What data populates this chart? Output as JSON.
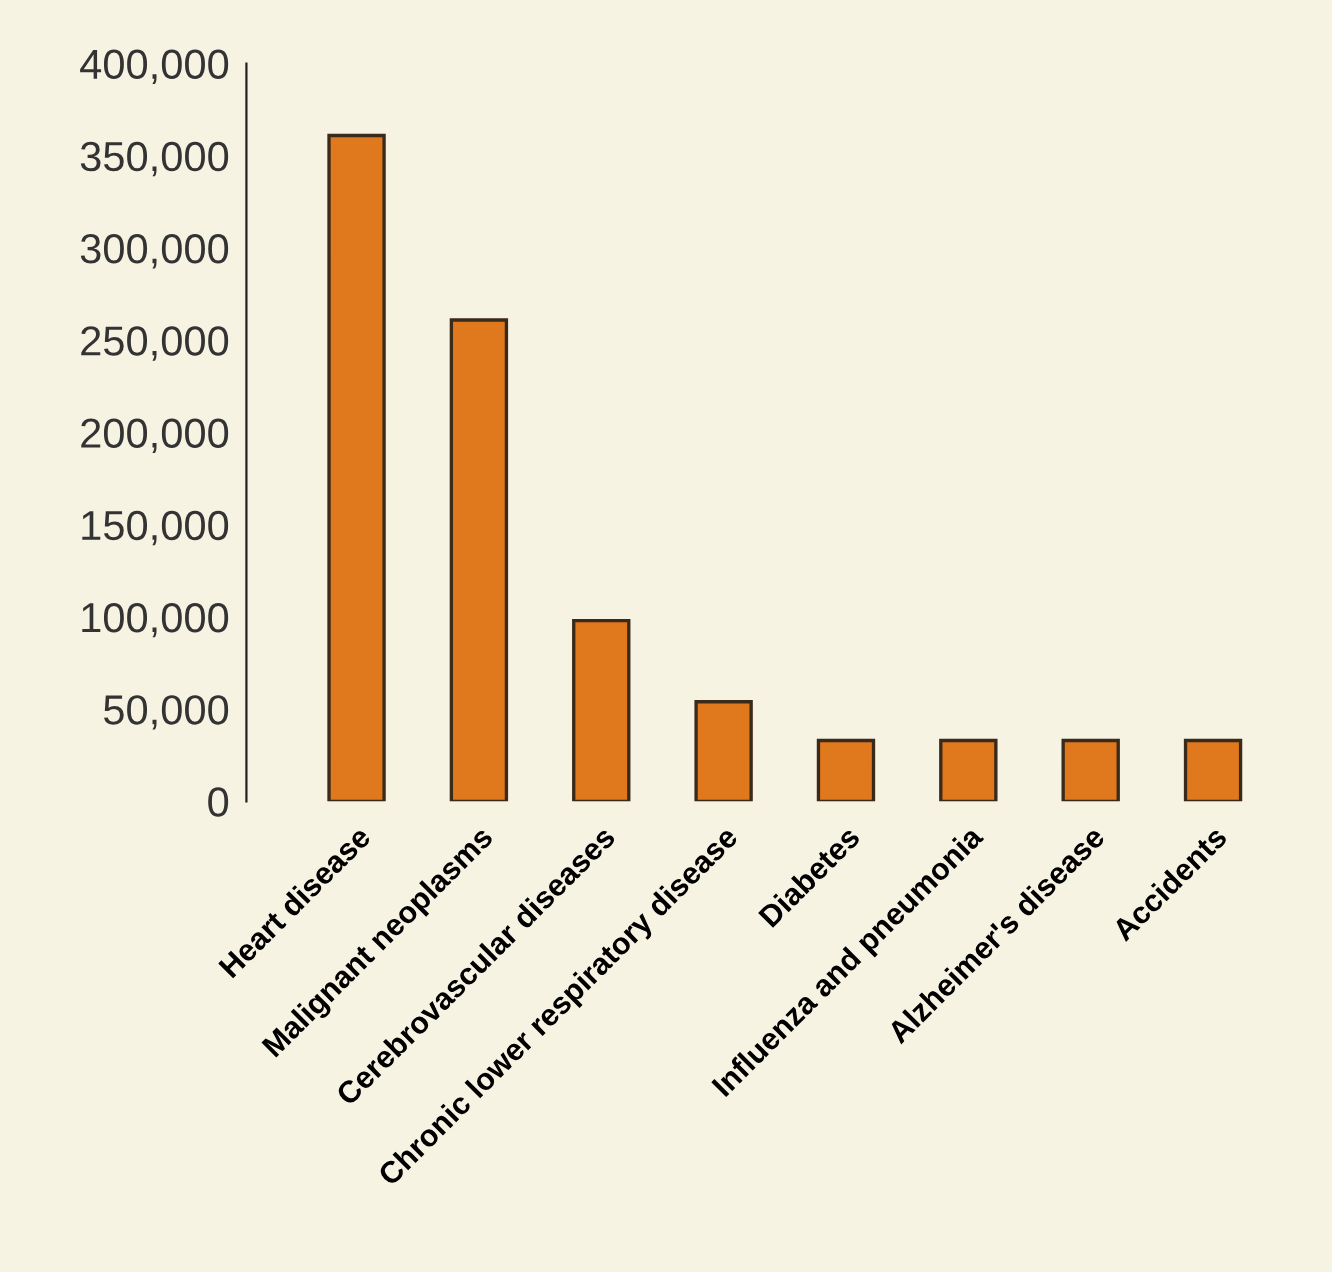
{
  "chart_data": {
    "type": "bar",
    "categories": [
      "Heart disease",
      "Malignant neoplasms",
      "Cerebrovascular diseases",
      "Chronic lower respiratory disease",
      "Diabetes",
      "Influenza and pneumonia",
      "Alzheimer's disease",
      "Accidents"
    ],
    "values": [
      361000,
      261000,
      98000,
      54000,
      33000,
      33000,
      33000,
      33000
    ],
    "color": "#e0781e",
    "ylim": [
      0,
      400000
    ],
    "yticks": [
      {
        "value": 0,
        "label": "0"
      },
      {
        "value": 50000,
        "label": "50,000"
      },
      {
        "value": 100000,
        "label": "100,000"
      },
      {
        "value": 150000,
        "label": "150,000"
      },
      {
        "value": 200000,
        "label": "200,000"
      },
      {
        "value": 250000,
        "label": "250,000"
      },
      {
        "value": 300000,
        "label": "300,000"
      },
      {
        "value": 350000,
        "label": "350,000"
      },
      {
        "value": 400000,
        "label": "400,000"
      }
    ],
    "grid": false
  }
}
